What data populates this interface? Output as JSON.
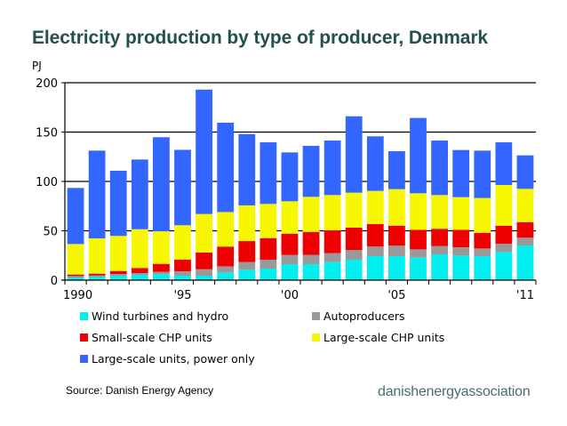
{
  "title": "Electricity production by type of producer, Denmark",
  "source": "Source: Danish Energy Agency",
  "brand": "danishenergyassociation",
  "chart_data": {
    "type": "bar",
    "stacked": true,
    "title": "Electricity production by type of producer, Denmark",
    "xlabel": "",
    "ylabel": "PJ",
    "ylim": [
      0,
      200
    ],
    "yticks": [
      0,
      50,
      100,
      150,
      200
    ],
    "grid": "horizontal",
    "legend_position": "bottom",
    "categories": [
      "1990",
      "1991",
      "1992",
      "1993",
      "1994",
      "1995",
      "1996",
      "1997",
      "1998",
      "1999",
      "2000",
      "2001",
      "2002",
      "2003",
      "2004",
      "2005",
      "2006",
      "2007",
      "2008",
      "2009",
      "2010",
      "2011"
    ],
    "xtick_labels": [
      {
        "index": 0,
        "label": "1990"
      },
      {
        "index": 5,
        "label": "'95"
      },
      {
        "index": 10,
        "label": "'00"
      },
      {
        "index": 15,
        "label": "'05"
      },
      {
        "index": 21,
        "label": "'11"
      }
    ],
    "series": [
      {
        "name": "Wind turbines and hydro",
        "color": "#00f0f0",
        "values": [
          2.7,
          3.6,
          4.5,
          5.4,
          6.0,
          4.5,
          4.5,
          7.5,
          10.5,
          11.7,
          16.2,
          16.2,
          18.3,
          20.7,
          24.3,
          24.3,
          22.8,
          26.1,
          24.9,
          24.3,
          28.5,
          35.1
        ]
      },
      {
        "name": "Autoproducers",
        "color": "#999999",
        "values": [
          1.5,
          1.2,
          1.8,
          1.8,
          2.4,
          4.5,
          6.5,
          6.5,
          7.8,
          9.0,
          9.3,
          9.3,
          9.0,
          9.7,
          9.7,
          10.6,
          8.4,
          8.4,
          8.4,
          7.8,
          8.4,
          7.9
        ]
      },
      {
        "name": "Small-scale CHP units",
        "color": "#ee0000",
        "values": [
          1.5,
          1.8,
          3.0,
          5.1,
          8.1,
          11.7,
          17.0,
          20.0,
          21.3,
          21.9,
          21.6,
          23.4,
          23.2,
          22.8,
          22.8,
          20.3,
          19.8,
          17.5,
          17.7,
          15.9,
          18.3,
          15.8
        ]
      },
      {
        "name": "Large-scale CHP units",
        "color": "#f7f700",
        "values": [
          30.9,
          35.7,
          35.5,
          39.3,
          33.0,
          34.9,
          39.0,
          35.0,
          36.1,
          34.6,
          32.8,
          35.5,
          35.7,
          35.4,
          33.6,
          37.0,
          37.0,
          34.2,
          33.1,
          35.2,
          41.2,
          33.7
        ]
      },
      {
        "name": "Large-scale units, power only",
        "color": "#3366ff",
        "values": [
          56.8,
          88.9,
          66.0,
          70.6,
          95.3,
          76.4,
          126.0,
          90.5,
          72.3,
          62.4,
          49.5,
          51.6,
          55.2,
          77.4,
          55.3,
          38.4,
          76.3,
          55.2,
          47.7,
          48.0,
          43.2,
          33.9
        ]
      }
    ],
    "legend_order": [
      0,
      1,
      2,
      3,
      4
    ]
  }
}
